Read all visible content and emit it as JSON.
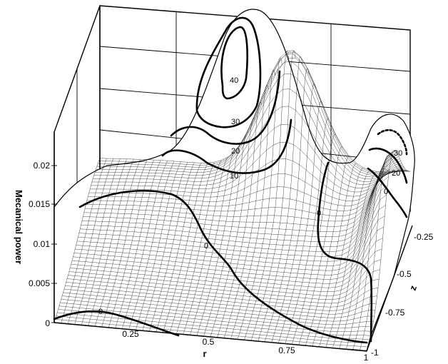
{
  "chart_data": {
    "type": "surface",
    "xlabel": "r",
    "ylabel": "z",
    "zlabel": "Mecanical power",
    "x_ticks": [
      "0.25",
      "0.5",
      "0.75",
      "1"
    ],
    "y_ticks": [
      "-0.25",
      "-0.5",
      "-0.75",
      "-1"
    ],
    "z_ticks": [
      "0",
      "0.005",
      "0.01",
      "0.015",
      "0.02"
    ],
    "x_range": [
      0,
      1
    ],
    "y_range": [
      -1,
      -0.25
    ],
    "z_range": [
      0,
      0.025
    ],
    "contour_labels": [
      "40",
      "30",
      "20",
      "10",
      "0",
      "0",
      "0",
      "30",
      "20",
      "0"
    ]
  }
}
